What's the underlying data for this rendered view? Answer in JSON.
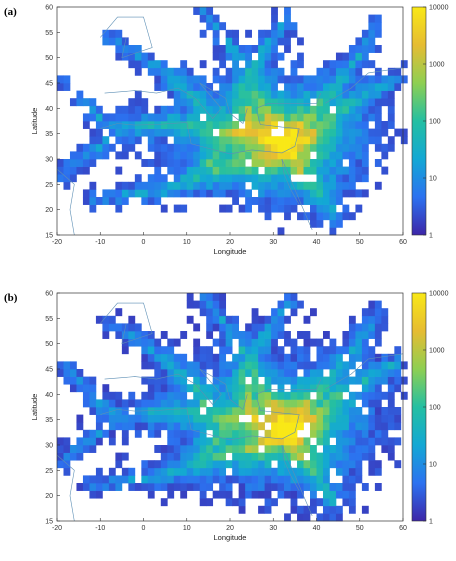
{
  "chart_data": [
    {
      "panel_label": "(a)",
      "type": "heatmap",
      "xlabel": "Longitude",
      "ylabel": "Latitude",
      "xlim": [
        -20,
        60
      ],
      "ylim": [
        15,
        60
      ],
      "x_ticks": [
        -20,
        -10,
        0,
        10,
        20,
        30,
        40,
        50,
        60
      ],
      "y_ticks": [
        15,
        20,
        25,
        30,
        35,
        40,
        45,
        50,
        55,
        60
      ],
      "colorbar": {
        "label": "Frequency",
        "scale": "log",
        "range": [
          1,
          10000
        ],
        "ticks": [
          "10000",
          "1000",
          "100",
          "10",
          "1"
        ]
      },
      "colormap": [
        "#3d26a8",
        "#2c72f0",
        "#13a8d4",
        "#24bfa2",
        "#8ecf52",
        "#e6bc32",
        "#f9e816"
      ],
      "hotspot": {
        "lon": 33,
        "lat": 33,
        "approx_frequency": 3000
      }
    },
    {
      "panel_label": "(b)",
      "type": "heatmap",
      "xlabel": "Longitude",
      "ylabel": "Latitude",
      "xlim": [
        -20,
        60
      ],
      "ylim": [
        15,
        60
      ],
      "x_ticks": [
        -20,
        -10,
        0,
        10,
        20,
        30,
        40,
        50,
        60
      ],
      "y_ticks": [
        15,
        20,
        25,
        30,
        35,
        40,
        45,
        50,
        55,
        60
      ],
      "colorbar": {
        "label": "Frequency",
        "scale": "log",
        "range": [
          1,
          10000
        ],
        "ticks": [
          "10000",
          "1000",
          "100",
          "10",
          "1"
        ]
      },
      "colormap": [
        "#3d26a8",
        "#2c72f0",
        "#13a8d4",
        "#24bfa2",
        "#8ecf52",
        "#e6bc32",
        "#f9e816"
      ],
      "hotspot": {
        "lon": 34,
        "lat": 33,
        "approx_frequency": 4000
      }
    }
  ]
}
